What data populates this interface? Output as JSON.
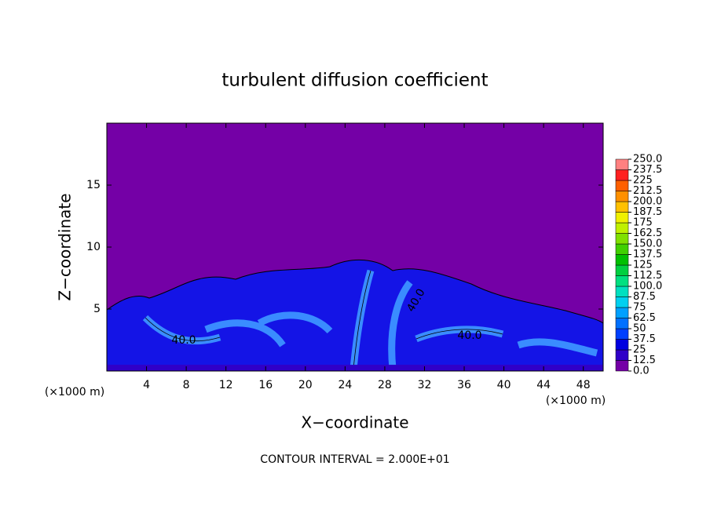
{
  "chart_data": {
    "type": "contour",
    "title": "turbulent diffusion coefficient",
    "x_label": "X−coordinate",
    "y_label": "Z−coordinate",
    "x_unit": "(×1000 m)",
    "footnote": "CONTOUR INTERVAL = 2.000E+01",
    "xlim": [
      0,
      50
    ],
    "xticks": [
      4,
      8,
      12,
      16,
      20,
      24,
      28,
      32,
      36,
      40,
      44,
      48
    ],
    "ylim": [
      0,
      20
    ],
    "yticks": [
      5,
      10,
      15
    ],
    "contour_labels": [
      {
        "value": 40,
        "label": "40.0"
      },
      {
        "value": 40,
        "label": "40.0"
      },
      {
        "value": 40,
        "label": "40.0"
      }
    ],
    "colorbar": {
      "ticks": [
        {
          "value": 0,
          "label": "0.0"
        },
        12.5,
        25,
        37.5,
        50,
        62.5,
        75,
        87.5,
        {
          "value": 100,
          "label": "100.0"
        },
        112.5,
        125,
        137.5,
        {
          "value": 150,
          "label": "150.0"
        },
        162.5,
        175,
        187.5,
        {
          "value": 200,
          "label": "200.0"
        },
        212.5,
        225,
        237.5,
        {
          "value": 250,
          "label": "250.0"
        }
      ],
      "colors": [
        "#7400a6",
        "#3000c8",
        "#0000e0",
        "#0040ff",
        "#0070ff",
        "#00a0ff",
        "#00d0f0",
        "#00e0c0",
        "#00e080",
        "#00d040",
        "#00c000",
        "#40d000",
        "#80e000",
        "#c0f000",
        "#f0f000",
        "#ffc000",
        "#ff9000",
        "#ff6000",
        "#ff2020",
        "#ff8080"
      ]
    }
  }
}
